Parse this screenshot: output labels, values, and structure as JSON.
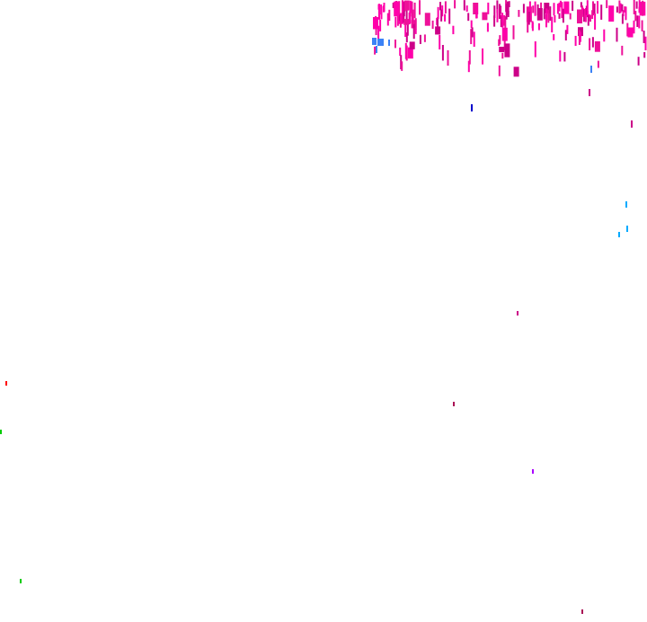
{
  "colors": {
    "background": "#ffffff",
    "magenta": "#ff00aa",
    "dark_magenta": "#cc0088",
    "pink": "#ee1199",
    "blue": "#3b82f6",
    "navy": "#0000cc",
    "cyan": "#00aaff",
    "violet": "#aa00ff",
    "red": "#ff0000",
    "green": "#00cc00",
    "maroon": "#aa1155"
  }
}
